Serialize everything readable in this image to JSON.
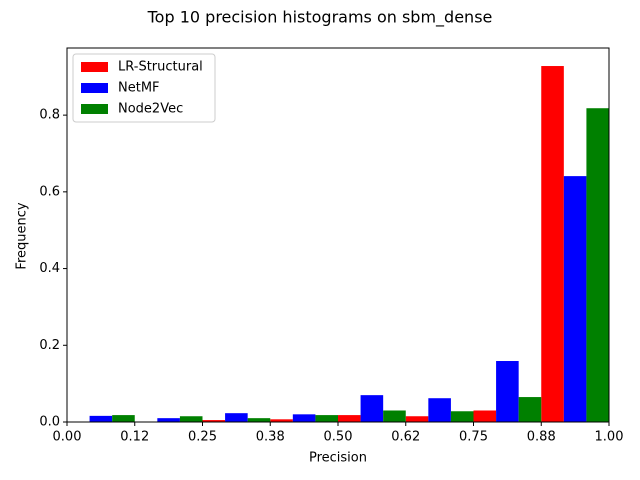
{
  "chart_data": {
    "type": "histogram",
    "title": "Top 10 precision histograms on sbm_dense",
    "xlabel": "Precision",
    "ylabel": "Frequency",
    "bins": [
      0,
      0.125,
      0.25,
      0.375,
      0.5,
      0.625,
      0.75,
      0.875,
      1
    ],
    "series": [
      {
        "name": "LR-Structural",
        "color": "#ff0000",
        "values": [
          0,
          0,
          0.005,
          0.007,
          0.018,
          0.015,
          0.03,
          0.928
        ]
      },
      {
        "name": "NetMF",
        "color": "#0000ff",
        "values": [
          0.016,
          0.01,
          0.023,
          0.02,
          0.07,
          0.062,
          0.159,
          0.641
        ]
      },
      {
        "name": "Node2Vec",
        "color": "#008000",
        "values": [
          0.018,
          0.015,
          0.01,
          0.018,
          0.03,
          0.028,
          0.065,
          0.818
        ]
      }
    ],
    "xlim": [
      0,
      1
    ],
    "xticks": [
      {
        "value": 0,
        "label": "0.00"
      },
      {
        "value": 0.125,
        "label": "0.12"
      },
      0.25,
      {
        "value": 0.375,
        "label": "0.38"
      },
      {
        "value": 0.5,
        "label": "0.50"
      },
      {
        "value": 0.625,
        "label": "0.62"
      },
      0.75,
      {
        "value": 0.875,
        "label": "0.88"
      },
      {
        "value": 1,
        "label": "1.00"
      }
    ],
    "ylim": [
      0,
      0.975
    ],
    "yticks": [
      {
        "value": 0,
        "label": "0.0"
      },
      0.2,
      0.4,
      0.6,
      0.8
    ],
    "legend": "upper left"
  }
}
